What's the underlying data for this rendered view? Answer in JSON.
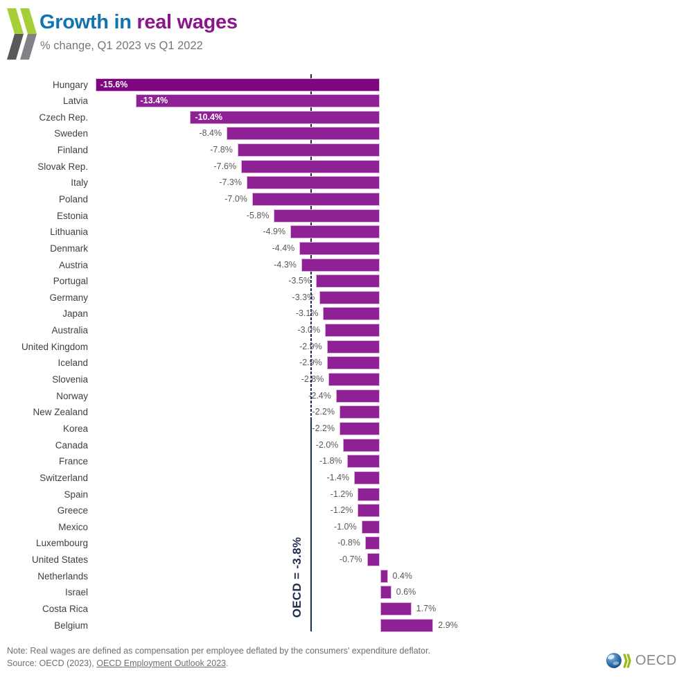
{
  "header": {
    "title_part1": "Growth in",
    "title_part2": " real wages",
    "subtitle": "% change, Q1 2023 vs Q1 2022"
  },
  "chart_data": {
    "type": "bar",
    "orientation": "horizontal",
    "title": "Growth in real wages",
    "subtitle": "% change, Q1 2023 vs Q1 2022",
    "unit": "%",
    "value_format": "one_decimal_percent",
    "axis_range": [
      -16,
      3.5
    ],
    "grid": false,
    "categories": [
      "Hungary",
      "Latvia",
      "Czech Rep.",
      "Sweden",
      "Finland",
      "Slovak Rep.",
      "Italy",
      "Poland",
      "Estonia",
      "Lithuania",
      "Denmark",
      "Austria",
      "Portugal",
      "Germany",
      "Japan",
      "Australia",
      "United Kingdom",
      "Iceland",
      "Slovenia",
      "Norway",
      "New Zealand",
      "Korea",
      "Canada",
      "France",
      "Switzerland",
      "Spain",
      "Greece",
      "Mexico",
      "Luxembourg",
      "United States",
      "Netherlands",
      "Israel",
      "Costa Rica",
      "Belgium"
    ],
    "values": [
      -15.6,
      -13.4,
      -10.4,
      -8.4,
      -7.8,
      -7.6,
      -7.3,
      -7.0,
      -5.8,
      -4.9,
      -4.4,
      -4.3,
      -3.5,
      -3.3,
      -3.1,
      -3.0,
      -2.9,
      -2.9,
      -2.8,
      -2.4,
      -2.2,
      -2.2,
      -2.0,
      -1.8,
      -1.4,
      -1.2,
      -1.2,
      -1.0,
      -0.8,
      -0.7,
      0.4,
      0.6,
      1.7,
      2.9
    ],
    "reference_line": {
      "label": "OECD = -3.8%",
      "value": -3.8,
      "color": "#1d2b4e"
    },
    "inside_label_threshold": -10,
    "bar_colors": {
      "default": "#8e2194",
      "Hungary": "#7d0680"
    },
    "colors": {
      "title_blue": "#1173b2",
      "title_purple": "#8c158c",
      "value_label": "#595959",
      "country_label": "#3f3f3f"
    }
  },
  "footer": {
    "note": "Note: Real wages are defined as compensation per employee deflated by the consumers’ expenditure deflator.",
    "source_prefix": "Source: OECD (2023), ",
    "source_link": "OECD Employment Outlook 2023",
    "source_suffix": ".",
    "logo_text": "OECD"
  }
}
